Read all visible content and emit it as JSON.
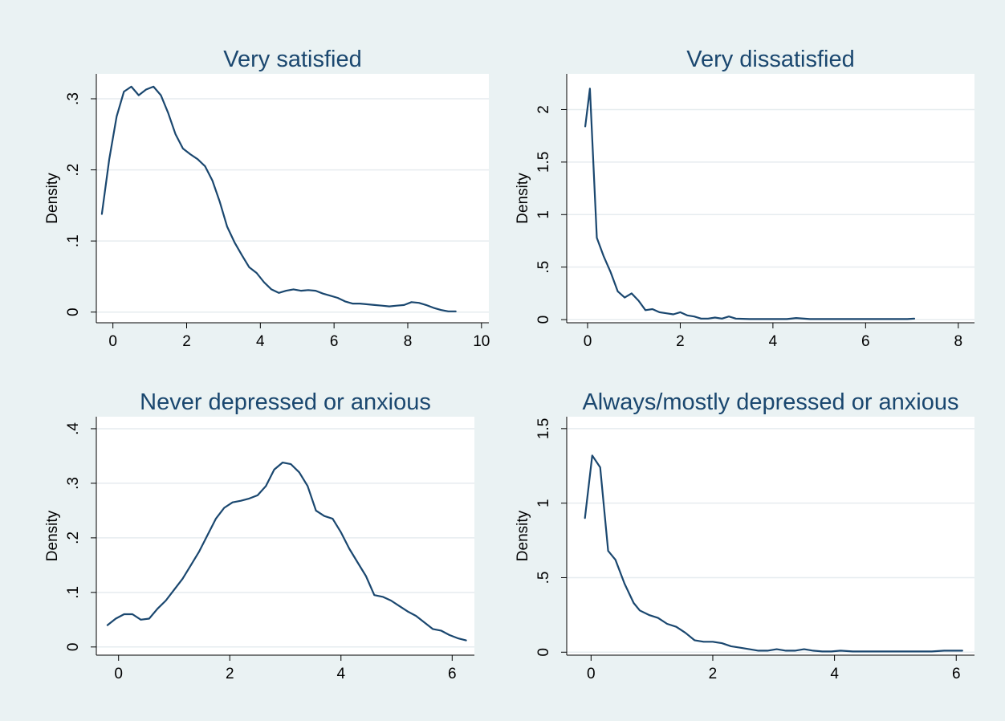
{
  "colors": {
    "outer_background": "#eaf2f3",
    "plot_background": "#ffffff",
    "title": "#1a476f",
    "line": "#1a476f",
    "grid": "#e6ecef"
  },
  "chart_data": [
    {
      "type": "line",
      "title": "Very satisfied",
      "xlabel": "",
      "ylabel": "Density",
      "xlim": [
        -0.45,
        10.2
      ],
      "ylim": [
        -0.015,
        0.335
      ],
      "xticks": [
        0,
        2,
        4,
        6,
        8,
        10
      ],
      "xtick_labels": [
        "0",
        "2",
        "4",
        "6",
        "8",
        "10"
      ],
      "yticks": [
        0,
        0.1,
        0.2,
        0.3
      ],
      "ytick_labels": [
        "0",
        ".1",
        ".2",
        ".3"
      ],
      "grid": true,
      "series": [
        {
          "x": [
            -0.3,
            -0.1,
            0.1,
            0.3,
            0.5,
            0.7,
            0.9,
            1.1,
            1.3,
            1.5,
            1.7,
            1.9,
            2.1,
            2.3,
            2.5,
            2.7,
            2.9,
            3.1,
            3.3,
            3.5,
            3.7,
            3.9,
            4.1,
            4.3,
            4.5,
            4.7,
            4.9,
            5.1,
            5.3,
            5.5,
            5.7,
            5.9,
            6.1,
            6.3,
            6.5,
            6.7,
            6.9,
            7.1,
            7.3,
            7.5,
            7.7,
            7.9,
            8.1,
            8.3,
            8.5,
            8.7,
            8.9,
            9.1,
            9.3
          ],
          "y": [
            0.138,
            0.215,
            0.275,
            0.31,
            0.317,
            0.305,
            0.313,
            0.317,
            0.305,
            0.28,
            0.25,
            0.23,
            0.222,
            0.215,
            0.205,
            0.185,
            0.155,
            0.12,
            0.098,
            0.08,
            0.063,
            0.055,
            0.042,
            0.032,
            0.027,
            0.03,
            0.032,
            0.03,
            0.031,
            0.03,
            0.026,
            0.023,
            0.02,
            0.015,
            0.012,
            0.012,
            0.011,
            0.01,
            0.009,
            0.008,
            0.009,
            0.01,
            0.014,
            0.013,
            0.01,
            0.006,
            0.003,
            0.001,
            0.001
          ]
        }
      ]
    },
    {
      "type": "line",
      "title": "Very dissatisfied",
      "xlabel": "",
      "ylabel": "Density",
      "xlim": [
        -0.45,
        8.35
      ],
      "ylim": [
        -0.03,
        2.34
      ],
      "xticks": [
        0,
        2,
        4,
        6,
        8
      ],
      "xtick_labels": [
        "0",
        "2",
        "4",
        "6",
        "8"
      ],
      "yticks": [
        0,
        0.5,
        1,
        1.5,
        2
      ],
      "ytick_labels": [
        "0",
        ".5",
        "1",
        "1.5",
        "2"
      ],
      "grid": true,
      "series": [
        {
          "x": [
            -0.05,
            0.05,
            0.2,
            0.35,
            0.5,
            0.65,
            0.8,
            0.95,
            1.1,
            1.25,
            1.4,
            1.55,
            1.7,
            1.85,
            2.0,
            2.15,
            2.3,
            2.45,
            2.6,
            2.75,
            2.9,
            3.05,
            3.2,
            3.5,
            4.0,
            4.3,
            4.5,
            4.8,
            5.0,
            5.5,
            6.0,
            6.5,
            6.9,
            7.05
          ],
          "y": [
            1.84,
            2.2,
            0.78,
            0.6,
            0.45,
            0.27,
            0.21,
            0.25,
            0.18,
            0.09,
            0.1,
            0.07,
            0.06,
            0.05,
            0.07,
            0.04,
            0.03,
            0.01,
            0.01,
            0.02,
            0.01,
            0.03,
            0.01,
            0.005,
            0.005,
            0.005,
            0.015,
            0.005,
            0.005,
            0.005,
            0.005,
            0.005,
            0.005,
            0.01
          ]
        }
      ]
    },
    {
      "type": "line",
      "title": "Never depressed or anxious",
      "xlabel": "",
      "ylabel": "Density",
      "xlim": [
        -0.4,
        6.4
      ],
      "ylim": [
        -0.015,
        0.422
      ],
      "xticks": [
        0,
        2,
        4,
        6
      ],
      "xtick_labels": [
        "0",
        "2",
        "4",
        "6"
      ],
      "yticks": [
        0,
        0.1,
        0.2,
        0.3,
        0.4
      ],
      "ytick_labels": [
        "0",
        ".1",
        ".2",
        ".3",
        ".4"
      ],
      "grid": true,
      "series": [
        {
          "x": [
            -0.2,
            -0.05,
            0.1,
            0.25,
            0.4,
            0.55,
            0.7,
            0.85,
            1.0,
            1.15,
            1.3,
            1.45,
            1.6,
            1.75,
            1.9,
            2.05,
            2.2,
            2.35,
            2.5,
            2.65,
            2.8,
            2.95,
            3.1,
            3.25,
            3.4,
            3.55,
            3.7,
            3.85,
            4.0,
            4.15,
            4.3,
            4.45,
            4.6,
            4.75,
            4.9,
            5.05,
            5.2,
            5.35,
            5.5,
            5.65,
            5.8,
            5.95,
            6.1,
            6.25
          ],
          "y": [
            0.04,
            0.052,
            0.06,
            0.06,
            0.05,
            0.052,
            0.07,
            0.085,
            0.105,
            0.125,
            0.15,
            0.175,
            0.205,
            0.235,
            0.255,
            0.265,
            0.268,
            0.272,
            0.278,
            0.295,
            0.325,
            0.338,
            0.335,
            0.32,
            0.295,
            0.25,
            0.24,
            0.235,
            0.21,
            0.18,
            0.155,
            0.13,
            0.095,
            0.092,
            0.085,
            0.075,
            0.065,
            0.057,
            0.045,
            0.033,
            0.03,
            0.022,
            0.016,
            0.012
          ]
        }
      ]
    },
    {
      "type": "line",
      "title": "Always/mostly depressed or anxious",
      "xlabel": "",
      "ylabel": "Density",
      "xlim": [
        -0.4,
        6.3
      ],
      "ylim": [
        -0.02,
        1.58
      ],
      "xticks": [
        0,
        2,
        4,
        6
      ],
      "xtick_labels": [
        "0",
        "2",
        "4",
        "6"
      ],
      "yticks": [
        0,
        0.5,
        1,
        1.5
      ],
      "ytick_labels": [
        "0",
        ".5",
        "1",
        "1.5"
      ],
      "grid": true,
      "series": [
        {
          "x": [
            -0.1,
            0.02,
            0.15,
            0.28,
            0.4,
            0.55,
            0.7,
            0.8,
            0.95,
            1.1,
            1.25,
            1.4,
            1.55,
            1.7,
            1.85,
            2.0,
            2.15,
            2.3,
            2.45,
            2.6,
            2.75,
            2.9,
            3.05,
            3.2,
            3.35,
            3.5,
            3.65,
            3.8,
            3.95,
            4.1,
            4.3,
            4.5,
            4.8,
            5.0,
            5.3,
            5.6,
            5.8,
            6.1
          ],
          "y": [
            0.9,
            1.32,
            1.24,
            0.68,
            0.62,
            0.46,
            0.33,
            0.28,
            0.25,
            0.23,
            0.19,
            0.17,
            0.13,
            0.08,
            0.07,
            0.07,
            0.06,
            0.04,
            0.03,
            0.02,
            0.01,
            0.01,
            0.02,
            0.01,
            0.01,
            0.02,
            0.01,
            0.005,
            0.005,
            0.01,
            0.005,
            0.005,
            0.005,
            0.005,
            0.005,
            0.005,
            0.01,
            0.01
          ]
        }
      ]
    }
  ]
}
